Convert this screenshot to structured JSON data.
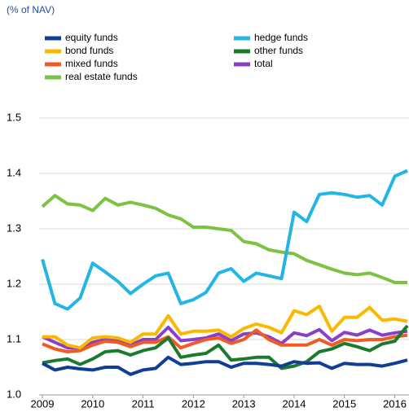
{
  "chart_data": {
    "type": "line",
    "subtitle": "(% of NAV)",
    "x": [
      2009,
      2009.25,
      2009.5,
      2009.75,
      2010,
      2010.25,
      2010.5,
      2010.75,
      2011,
      2011.25,
      2011.5,
      2011.75,
      2012,
      2012.25,
      2012.5,
      2012.75,
      2013,
      2013.25,
      2013.5,
      2013.75,
      2014,
      2014.25,
      2014.5,
      2014.75,
      2015,
      2015.25,
      2015.5,
      2015.75,
      2016,
      2016.25
    ],
    "xlim": [
      2009,
      2016.25
    ],
    "xticks": [
      2009,
      2010,
      2011,
      2012,
      2013,
      2014,
      2015,
      2016
    ],
    "ylim": [
      1,
      1.5
    ],
    "yticks": [
      {
        "value": 1,
        "label": "1.0"
      },
      1.1,
      1.2,
      1.3,
      1.4,
      1.5
    ],
    "grid": true,
    "series": [
      {
        "name": "equity funds",
        "color": "#103e95",
        "values": [
          1.057,
          1.045,
          1.05,
          1.047,
          1.045,
          1.05,
          1.05,
          1.037,
          1.045,
          1.048,
          1.068,
          1.055,
          1.057,
          1.06,
          1.06,
          1.05,
          1.057,
          1.057,
          1.055,
          1.052,
          1.06,
          1.057,
          1.058,
          1.048,
          1.057,
          1.055,
          1.055,
          1.052,
          1.057,
          1.063
        ]
      },
      {
        "name": "hedge funds",
        "color": "#22b5e6",
        "values": [
          1.245,
          1.165,
          1.155,
          1.175,
          1.238,
          1.222,
          1.205,
          1.183,
          1.2,
          1.215,
          1.22,
          1.165,
          1.172,
          1.185,
          1.22,
          1.228,
          1.205,
          1.22,
          1.215,
          1.21,
          1.33,
          1.313,
          1.362,
          1.365,
          1.362,
          1.357,
          1.36,
          1.343,
          1.395,
          1.405
        ]
      },
      {
        "name": "bond funds",
        "color": "#fbb800",
        "values": [
          1.105,
          1.105,
          1.09,
          1.085,
          1.103,
          1.105,
          1.103,
          1.095,
          1.11,
          1.11,
          1.143,
          1.11,
          1.115,
          1.115,
          1.117,
          1.105,
          1.12,
          1.128,
          1.122,
          1.112,
          1.152,
          1.145,
          1.16,
          1.115,
          1.14,
          1.14,
          1.158,
          1.135,
          1.137,
          1.133
        ]
      },
      {
        "name": "other funds",
        "color": "#1b7b2c",
        "values": [
          1.058,
          1.062,
          1.065,
          1.055,
          1.065,
          1.078,
          1.08,
          1.072,
          1.08,
          1.085,
          1.103,
          1.068,
          1.072,
          1.075,
          1.09,
          1.063,
          1.065,
          1.068,
          1.068,
          1.048,
          1.052,
          1.06,
          1.078,
          1.083,
          1.093,
          1.087,
          1.08,
          1.092,
          1.097,
          1.125
        ]
      },
      {
        "name": "mixed funds",
        "color": "#f05a23",
        "values": [
          1.092,
          1.083,
          1.078,
          1.08,
          1.09,
          1.097,
          1.095,
          1.087,
          1.095,
          1.095,
          1.105,
          1.085,
          1.093,
          1.1,
          1.103,
          1.093,
          1.1,
          1.117,
          1.1,
          1.09,
          1.09,
          1.09,
          1.1,
          1.09,
          1.1,
          1.098,
          1.1,
          1.1,
          1.105,
          1.108
        ]
      },
      {
        "name": "total",
        "color": "#8a3fc7",
        "values": [
          1.105,
          1.095,
          1.085,
          1.085,
          1.095,
          1.1,
          1.098,
          1.09,
          1.1,
          1.1,
          1.122,
          1.098,
          1.1,
          1.103,
          1.11,
          1.098,
          1.11,
          1.112,
          1.105,
          1.093,
          1.112,
          1.107,
          1.118,
          1.098,
          1.113,
          1.108,
          1.117,
          1.108,
          1.112,
          1.115
        ]
      },
      {
        "name": "real estate funds",
        "color": "#7dc242",
        "values": [
          1.34,
          1.36,
          1.345,
          1.343,
          1.333,
          1.355,
          1.343,
          1.348,
          1.343,
          1.337,
          1.325,
          1.318,
          1.303,
          1.303,
          1.3,
          1.297,
          1.277,
          1.273,
          1.262,
          1.258,
          1.255,
          1.243,
          1.235,
          1.227,
          1.22,
          1.217,
          1.22,
          1.212,
          1.203,
          1.203
        ]
      }
    ]
  }
}
